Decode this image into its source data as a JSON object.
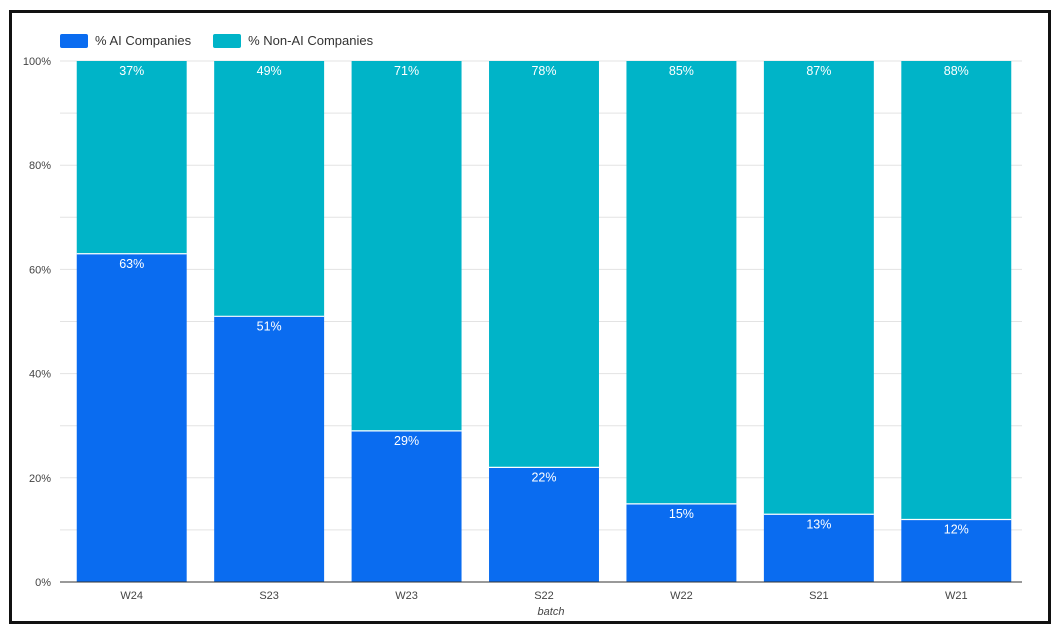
{
  "chart_data": {
    "type": "bar",
    "stacked": true,
    "xlabel": "batch",
    "ylabel": "",
    "ylim": [
      0,
      100
    ],
    "yticks": [
      "0%",
      "20%",
      "40%",
      "60%",
      "80%",
      "100%"
    ],
    "categories": [
      "W24",
      "S23",
      "W23",
      "S22",
      "W22",
      "S21",
      "W21"
    ],
    "series": [
      {
        "name": "% AI Companies",
        "color": "#0a6cf0",
        "values": [
          63,
          51,
          29,
          22,
          15,
          13,
          12
        ],
        "labels": [
          "63%",
          "51%",
          "29%",
          "22%",
          "15%",
          "13%",
          "12%"
        ]
      },
      {
        "name": "% Non-AI Companies",
        "color": "#00b4c8",
        "values": [
          37,
          49,
          71,
          78,
          85,
          87,
          88
        ],
        "labels": [
          "37%",
          "49%",
          "71%",
          "78%",
          "85%",
          "87%",
          "88%"
        ]
      }
    ],
    "grid": true,
    "legend_position": "top-left"
  }
}
